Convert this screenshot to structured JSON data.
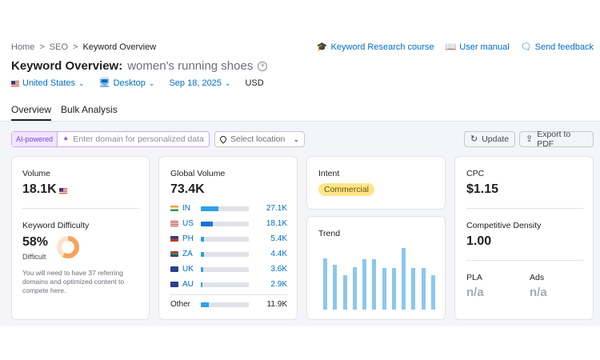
{
  "breadcrumbs": [
    "Home",
    "SEO",
    "Keyword Overview"
  ],
  "top_links": [
    {
      "label": "Keyword Research course",
      "icon": "graduation-cap-icon"
    },
    {
      "label": "User manual",
      "icon": "book-icon"
    },
    {
      "label": "Send feedback",
      "icon": "feedback-icon"
    }
  ],
  "title": {
    "prefix": "Keyword Overview:",
    "keyword": "women's running shoes"
  },
  "filters": {
    "database": "United States",
    "device": "Desktop",
    "date": "Sep 18, 2025",
    "currency": "USD"
  },
  "tabs": [
    {
      "label": "Overview",
      "active": true
    },
    {
      "label": "Bulk Analysis",
      "active": false
    }
  ],
  "toolbar": {
    "ai_label": "AI-powered",
    "domain_placeholder": "Enter domain for personalized data",
    "location_placeholder": "Select location",
    "update_label": "Update",
    "export_label": "Export to PDF"
  },
  "volume": {
    "label": "Volume",
    "value": "18.1K"
  },
  "difficulty": {
    "label": "Keyword Difficulty",
    "value": "58%",
    "percent": 58,
    "level": "Difficult",
    "note": "You will need to have 37 referring domains and optimized content to compete here.",
    "color": "#f6a35d"
  },
  "global_volume": {
    "label": "Global Volume",
    "value": "73.4K",
    "countries": [
      {
        "code": "IN",
        "value": "27.1K",
        "share": 0.37
      },
      {
        "code": "US",
        "value": "18.1K",
        "share": 0.25
      },
      {
        "code": "PH",
        "value": "5.4K",
        "share": 0.07
      },
      {
        "code": "ZA",
        "value": "4.4K",
        "share": 0.06
      },
      {
        "code": "UK",
        "value": "3.6K",
        "share": 0.05
      },
      {
        "code": "AU",
        "value": "2.9K",
        "share": 0.04
      }
    ],
    "other": {
      "label": "Other",
      "value": "11.9K",
      "share": 0.16
    }
  },
  "intent": {
    "label": "Intent",
    "value": "Commercial"
  },
  "trend": {
    "label": "Trend",
    "values": [
      0.78,
      0.68,
      0.53,
      0.65,
      0.77,
      0.77,
      0.63,
      0.63,
      0.94,
      0.63,
      0.63,
      0.52
    ]
  },
  "cpc": {
    "label": "CPC",
    "value": "$1.15"
  },
  "competitive_density": {
    "label": "Competitive Density",
    "value": "1.00"
  },
  "pla": {
    "label": "PLA",
    "value": "n/a"
  },
  "ads": {
    "label": "Ads",
    "value": "n/a"
  }
}
